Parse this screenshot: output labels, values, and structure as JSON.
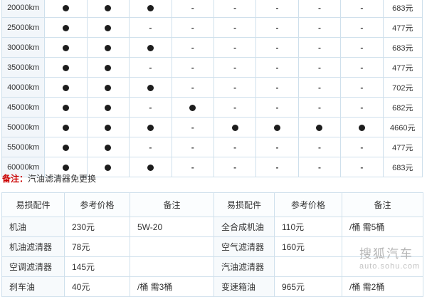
{
  "note": {
    "label": "备注：",
    "text": "汽油滤清器免更换"
  },
  "schedule_table": {
    "symbols": {
      "performed": "●",
      "not_performed": "-"
    },
    "rows": [
      {
        "km": "20000km",
        "services": [
          "●",
          "●",
          "●",
          "-",
          "-",
          "-",
          "-",
          "-"
        ],
        "price": "683元"
      },
      {
        "km": "25000km",
        "services": [
          "●",
          "●",
          "-",
          "-",
          "-",
          "-",
          "-",
          "-"
        ],
        "price": "477元"
      },
      {
        "km": "30000km",
        "services": [
          "●",
          "●",
          "●",
          "-",
          "-",
          "-",
          "-",
          "-"
        ],
        "price": "683元"
      },
      {
        "km": "35000km",
        "services": [
          "●",
          "●",
          "-",
          "-",
          "-",
          "-",
          "-",
          "-"
        ],
        "price": "477元"
      },
      {
        "km": "40000km",
        "services": [
          "●",
          "●",
          "●",
          "-",
          "-",
          "-",
          "-",
          "-"
        ],
        "price": "702元"
      },
      {
        "km": "45000km",
        "services": [
          "●",
          "●",
          "-",
          "●",
          "-",
          "-",
          "-",
          "-"
        ],
        "price": "682元"
      },
      {
        "km": "50000km",
        "services": [
          "●",
          "●",
          "●",
          "-",
          "●",
          "●",
          "●",
          "●"
        ],
        "price": "4660元"
      },
      {
        "km": "55000km",
        "services": [
          "●",
          "●",
          "-",
          "-",
          "-",
          "-",
          "-",
          "-"
        ],
        "price": "477元"
      },
      {
        "km": "60000km",
        "services": [
          "●",
          "●",
          "●",
          "-",
          "-",
          "-",
          "-",
          "-"
        ],
        "price": "683元"
      }
    ]
  },
  "parts_table": {
    "headers": [
      "易损配件",
      "参考价格",
      "备注",
      "易损配件",
      "参考价格",
      "备注"
    ],
    "rows": [
      [
        "机油",
        "230元",
        "5W-20",
        "全合成机油",
        "110元",
        "/桶 需5桶"
      ],
      [
        "机油滤清器",
        "78元",
        "",
        "空气滤清器",
        "160元",
        ""
      ],
      [
        "空调滤清器",
        "145元",
        "",
        "汽油滤清器",
        "",
        ""
      ],
      [
        "刹车油",
        "40元",
        "/桶 需3桶",
        "变速箱油",
        "965元",
        "/桶 需2桶"
      ]
    ]
  },
  "watermark": {
    "title": "搜狐汽车",
    "url_text": "auto.sohu.com"
  },
  "colors": {
    "border": "#cfe0ec",
    "km_column_bg": "#f2f6fa",
    "note_label": "#cc0000",
    "dot": "#1d1d1d",
    "watermark": "#b5b5b5"
  }
}
